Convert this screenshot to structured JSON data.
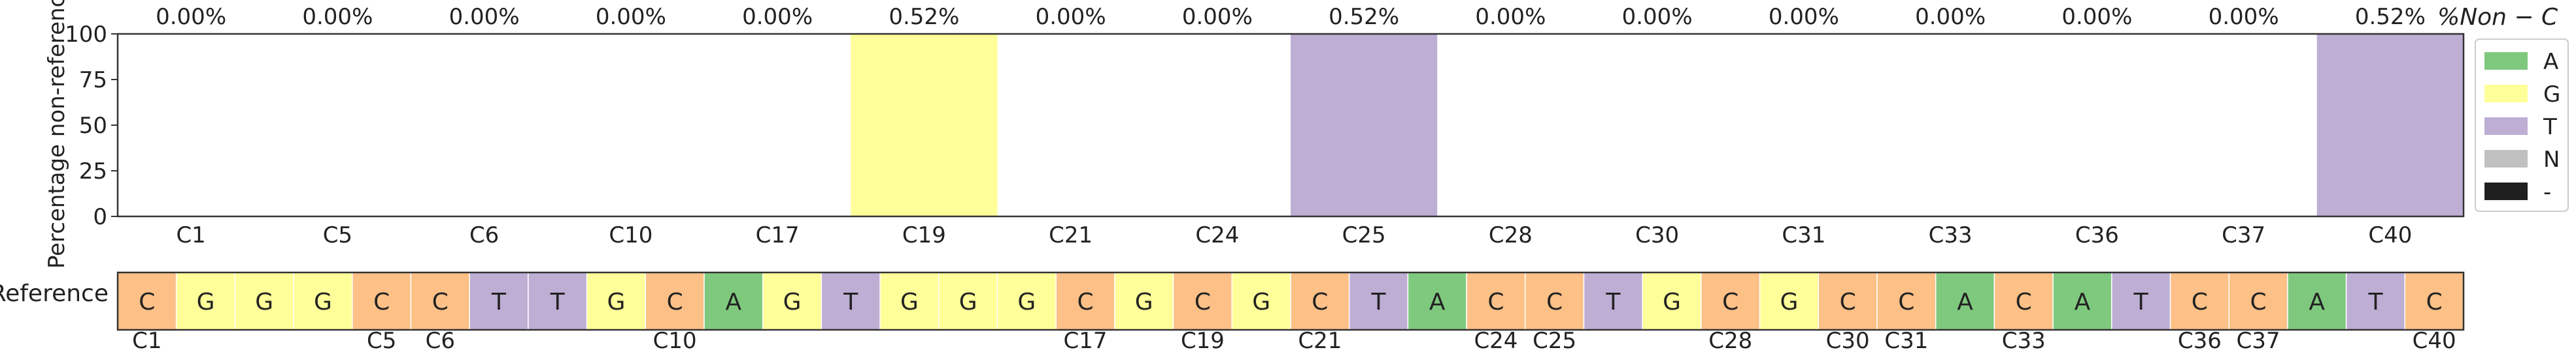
{
  "chart_data": {
    "type": "bar",
    "ylabel": "Percentage non-reference",
    "ylim": [
      0,
      100
    ],
    "yticks": [
      0,
      25,
      50,
      75,
      100
    ],
    "top_label": "%Non − C",
    "categories": [
      "C1",
      "C5",
      "C6",
      "C10",
      "C17",
      "C19",
      "C21",
      "C24",
      "C25",
      "C28",
      "C30",
      "C31",
      "C33",
      "C36",
      "C37",
      "C40"
    ],
    "percent_labels": [
      "0.00%",
      "0.00%",
      "0.00%",
      "0.00%",
      "0.00%",
      "0.52%",
      "0.00%",
      "0.00%",
      "0.52%",
      "0.00%",
      "0.00%",
      "0.00%",
      "0.00%",
      "0.00%",
      "0.00%",
      "0.52%"
    ],
    "bars": [
      {
        "category": "C19",
        "base": "G",
        "value": 100
      },
      {
        "category": "C25",
        "base": "T",
        "value": 100
      },
      {
        "category": "C40",
        "base": "T",
        "value": 100
      }
    ],
    "legend": [
      {
        "label": "A",
        "color": "#7fc97f"
      },
      {
        "label": "G",
        "color": "#ffff99"
      },
      {
        "label": "T",
        "color": "#beaed4"
      },
      {
        "label": "N",
        "color": "#c0c0c0"
      },
      {
        "label": "-",
        "color": "#1f1f1f"
      }
    ],
    "legend_position": "right",
    "reference": {
      "label": "Reference",
      "sequence": [
        "C",
        "G",
        "G",
        "G",
        "C",
        "C",
        "T",
        "T",
        "G",
        "C",
        "A",
        "G",
        "T",
        "G",
        "G",
        "G",
        "C",
        "G",
        "C",
        "G",
        "C",
        "T",
        "A",
        "C",
        "C",
        "T",
        "G",
        "C",
        "G",
        "C",
        "C",
        "A",
        "C",
        "A",
        "T",
        "C",
        "C",
        "A",
        "T",
        "C"
      ],
      "base_colors": {
        "A": "#7fc97f",
        "C": "#fdc086",
        "G": "#ffff99",
        "T": "#beaed4"
      },
      "position_labels": [
        {
          "label": "C1",
          "index": 0
        },
        {
          "label": "C5",
          "index": 4
        },
        {
          "label": "C6",
          "index": 5
        },
        {
          "label": "C10",
          "index": 9
        },
        {
          "label": "C17",
          "index": 16
        },
        {
          "label": "C19",
          "index": 18
        },
        {
          "label": "C21",
          "index": 20
        },
        {
          "label": "C24",
          "index": 23
        },
        {
          "label": "C25",
          "index": 24
        },
        {
          "label": "C28",
          "index": 27
        },
        {
          "label": "C30",
          "index": 29
        },
        {
          "label": "C31",
          "index": 30
        },
        {
          "label": "C33",
          "index": 32
        },
        {
          "label": "C36",
          "index": 35
        },
        {
          "label": "C37",
          "index": 36
        },
        {
          "label": "C40",
          "index": 39
        }
      ]
    }
  }
}
